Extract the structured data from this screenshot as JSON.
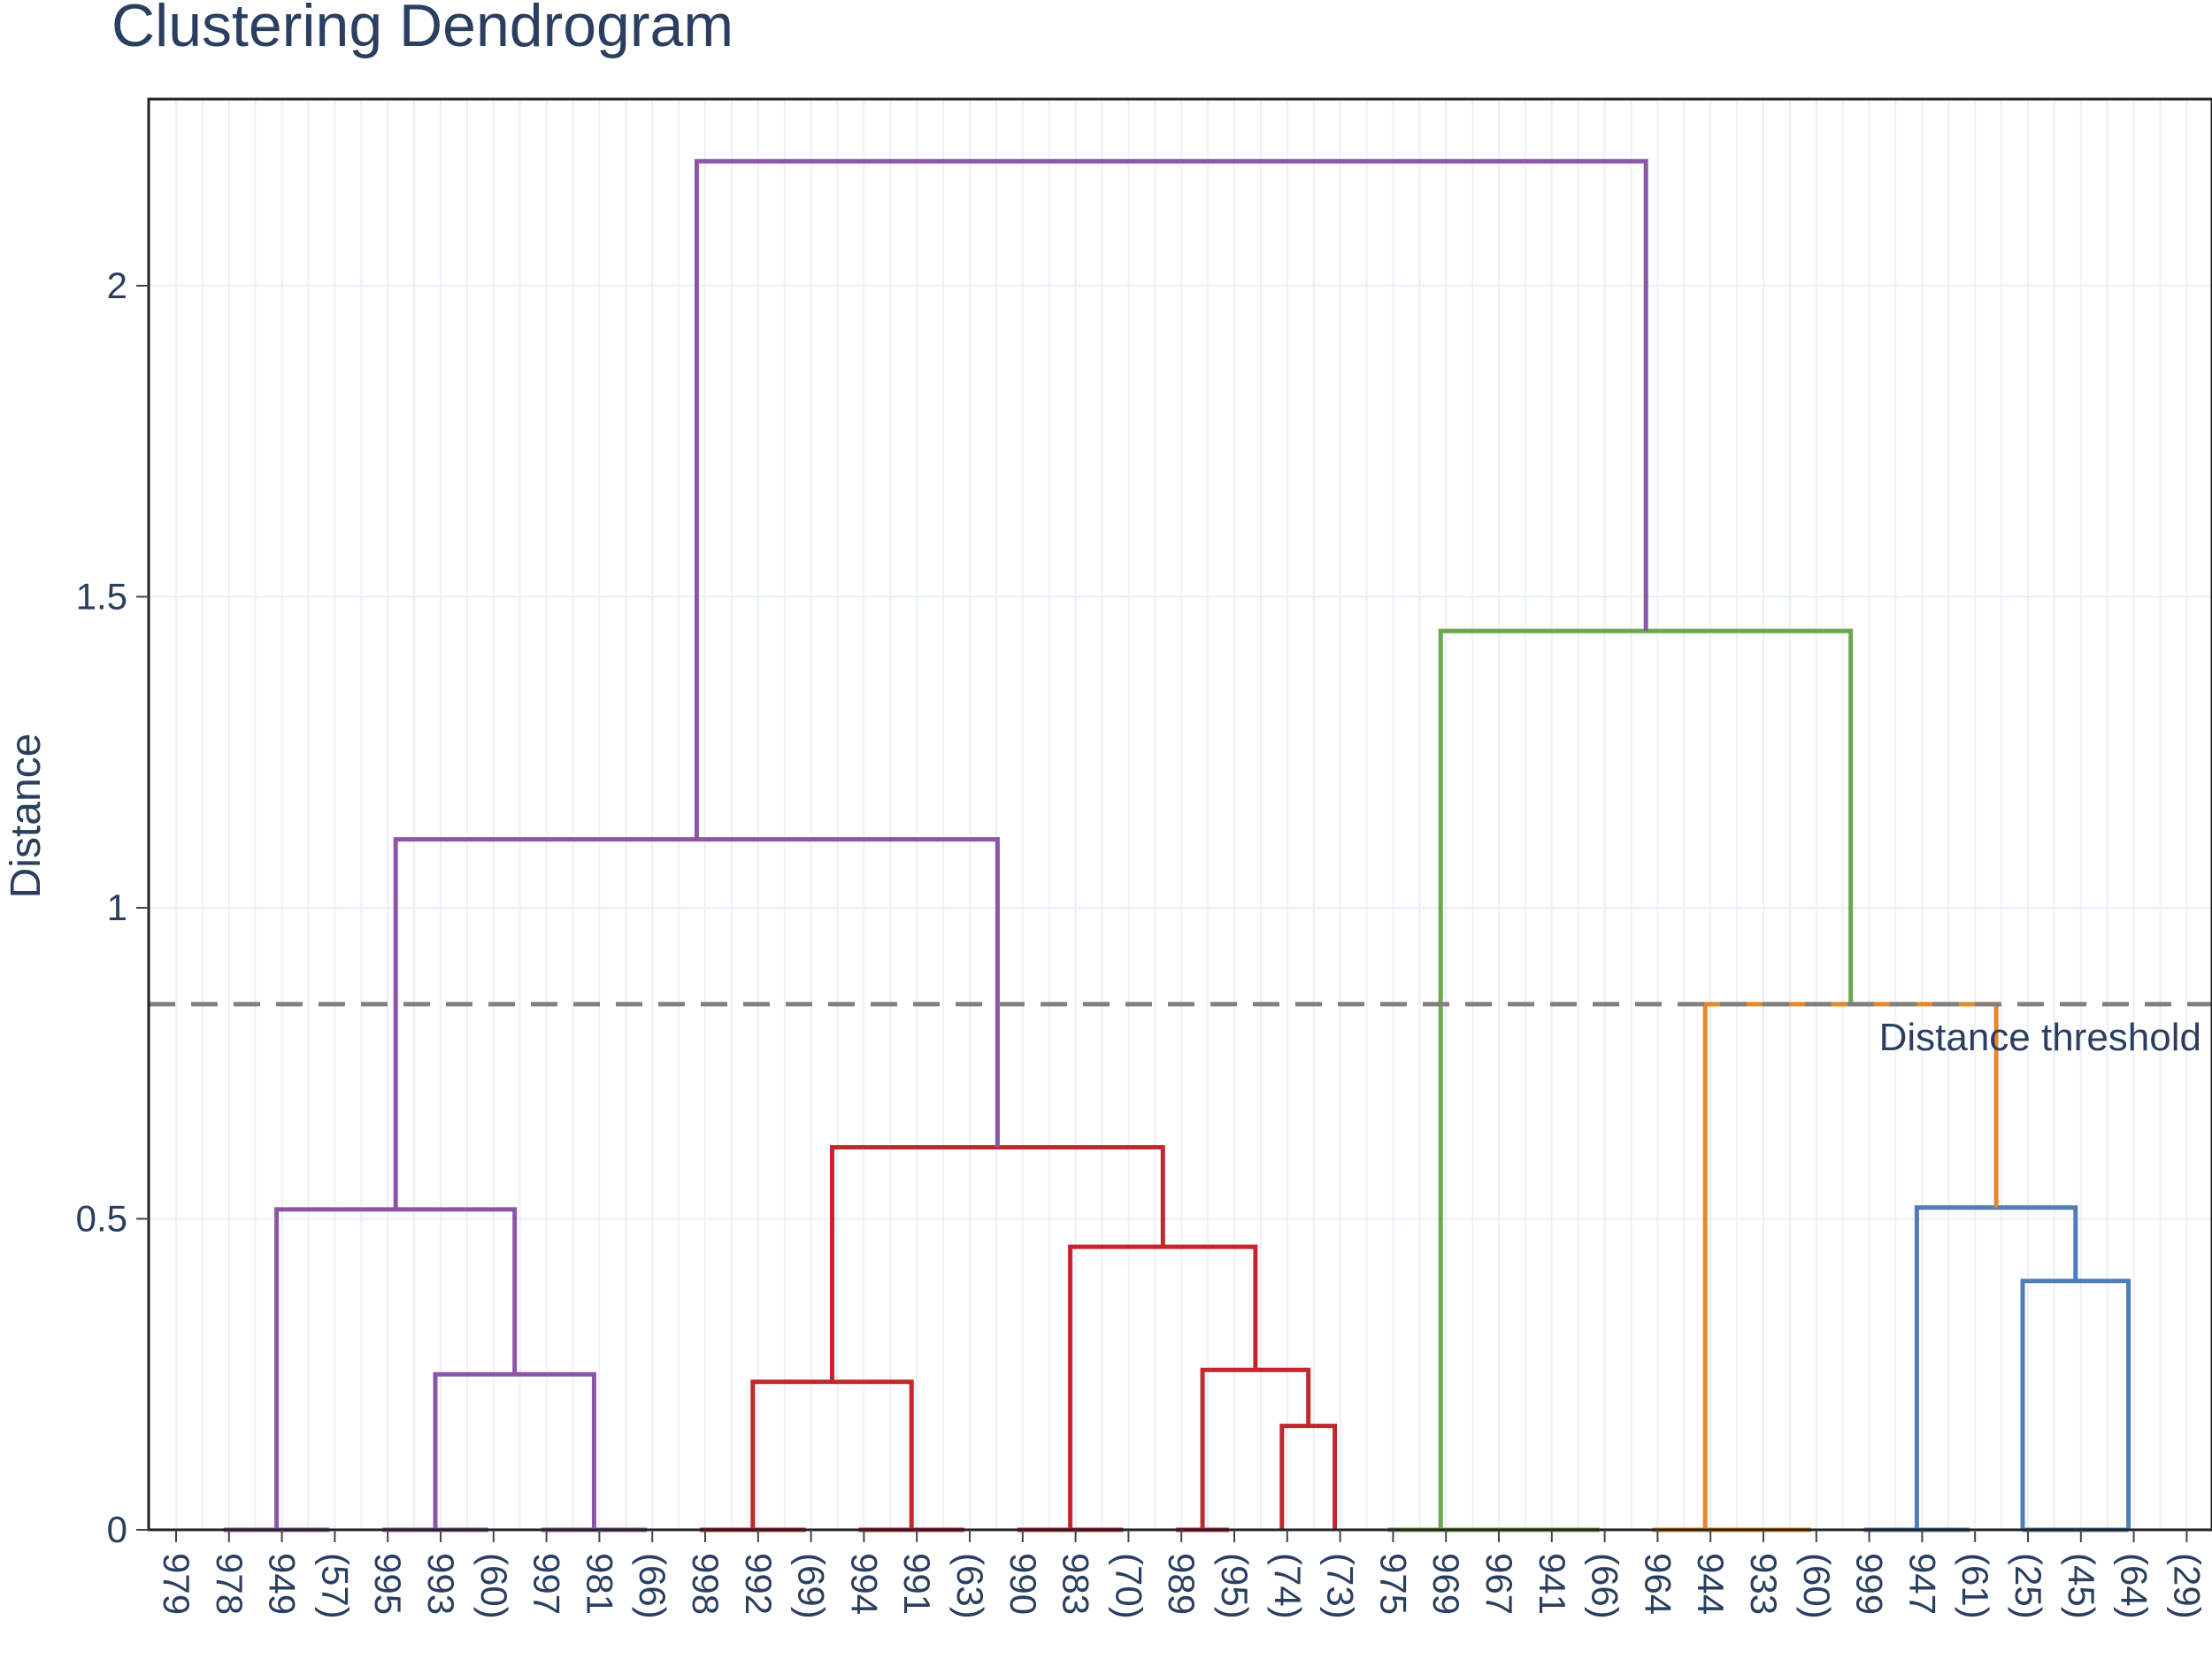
{
  "chart_data": {
    "type": "dendrogram",
    "title": "Clustering Dendrogram",
    "xlabel": "",
    "ylabel": "Distance",
    "ylim": [
      0,
      2.3
    ],
    "yticks": [
      0,
      0.5,
      1,
      1.5,
      2
    ],
    "ytick_labels": [
      "0",
      "0.5",
      "1",
      "1.5",
      "2"
    ],
    "grid": true,
    "colors": {
      "purple": "#8c56a6",
      "red": "#c0282d",
      "green": "#6aa84f",
      "orange": "#e8862a",
      "blue": "#4f7db8",
      "threshold": "#808080"
    },
    "leaves": [
      "979",
      "978",
      "949",
      "(57)",
      "995",
      "993",
      "(60)",
      "997",
      "981",
      "(66)",
      "998",
      "992",
      "(69)",
      "994",
      "991",
      "(63)",
      "990",
      "983",
      "(70)",
      "989",
      "(95)",
      "(74)",
      "(73)",
      "975",
      "969",
      "967",
      "941",
      "(66)",
      "964",
      "944",
      "933",
      "(60)",
      "999",
      "947",
      "(61)",
      "(25)",
      "(45)",
      "(64)",
      "(29)"
    ],
    "links": [
      {
        "x": [
          0.9,
          0.9,
          2.9,
          2.9
        ],
        "y": [
          0,
          0,
          0,
          0
        ],
        "color": "purple"
      },
      {
        "x": [
          3.9,
          3.9,
          5.9,
          5.9
        ],
        "y": [
          0,
          0,
          0,
          0
        ],
        "color": "purple"
      },
      {
        "x": [
          6.9,
          6.9,
          8.9,
          8.9
        ],
        "y": [
          0,
          0,
          0,
          0
        ],
        "color": "purple"
      },
      {
        "x": [
          4.9,
          4.9,
          7.9,
          7.9
        ],
        "y": [
          0,
          0.25,
          0.25,
          0
        ],
        "color": "purple"
      },
      {
        "x": [
          1.9,
          1.9,
          6.4,
          6.4
        ],
        "y": [
          0,
          0.515,
          0.515,
          0.25
        ],
        "color": "purple"
      },
      {
        "x": [
          9.9,
          9.9,
          11.9,
          11.9
        ],
        "y": [
          0,
          0,
          0,
          0
        ],
        "color": "red"
      },
      {
        "x": [
          12.9,
          12.9,
          14.9,
          14.9
        ],
        "y": [
          0,
          0,
          0,
          0
        ],
        "color": "red"
      },
      {
        "x": [
          10.9,
          10.9,
          13.9,
          13.9
        ],
        "y": [
          0,
          0.238,
          0.238,
          0
        ],
        "color": "red"
      },
      {
        "x": [
          15.9,
          15.9,
          17.9,
          17.9
        ],
        "y": [
          0,
          0,
          0,
          0
        ],
        "color": "red"
      },
      {
        "x": [
          18.9,
          18.9,
          19.9,
          19.9
        ],
        "y": [
          0,
          0,
          0,
          0
        ],
        "color": "red"
      },
      {
        "x": [
          20.9,
          20.9,
          21.9,
          21.9
        ],
        "y": [
          0,
          0.167,
          0.167,
          0
        ],
        "color": "red"
      },
      {
        "x": [
          19.4,
          19.4,
          21.4,
          21.4
        ],
        "y": [
          0,
          0.257,
          0.257,
          0.167
        ],
        "color": "red"
      },
      {
        "x": [
          16.9,
          16.9,
          20.4,
          20.4
        ],
        "y": [
          0,
          0.455,
          0.455,
          0.257
        ],
        "color": "red"
      },
      {
        "x": [
          12.4,
          12.4,
          18.65,
          18.65
        ],
        "y": [
          0.238,
          0.615,
          0.615,
          0.455
        ],
        "color": "red"
      },
      {
        "x": [
          4.15,
          4.15,
          15.525,
          15.525
        ],
        "y": [
          0.515,
          1.11,
          1.11,
          0.615
        ],
        "color": "purple"
      },
      {
        "x": [
          22.9,
          22.9,
          26.9,
          26.9
        ],
        "y": [
          0,
          0,
          0,
          0
        ],
        "color": "green"
      },
      {
        "x": [
          27.9,
          27.9,
          30.9,
          30.9
        ],
        "y": [
          0,
          0,
          0,
          0
        ],
        "color": "orange"
      },
      {
        "x": [
          31.9,
          31.9,
          33.9,
          33.9
        ],
        "y": [
          0,
          0,
          0,
          0
        ],
        "color": "blue"
      },
      {
        "x": [
          34.9,
          34.9,
          35.9,
          35.9
        ],
        "y": [
          0,
          0,
          0,
          0
        ],
        "color": "blue"
      },
      {
        "x": [
          35.9,
          35.9,
          36.9,
          36.9
        ],
        "y": [
          0,
          0,
          0,
          0
        ],
        "color": "blue"
      },
      {
        "x": [
          34.9,
          34.9,
          36.9,
          36.9
        ],
        "y": [
          0,
          0.4,
          0.4,
          0
        ],
        "color": "blue"
      },
      {
        "x": [
          32.9,
          32.9,
          35.9,
          35.9
        ],
        "y": [
          0,
          0.518,
          0.518,
          0.4
        ],
        "color": "blue"
      },
      {
        "x": [
          28.9,
          28.9,
          34.4,
          34.4
        ],
        "y": [
          0,
          0.845,
          0.845,
          0.518
        ],
        "color": "orange"
      },
      {
        "x": [
          23.9,
          23.9,
          31.65,
          31.65
        ],
        "y": [
          0,
          1.445,
          1.445,
          0.845
        ],
        "color": "green"
      },
      {
        "x": [
          9.84,
          9.84,
          27.78,
          27.78
        ],
        "y": [
          1.11,
          2.2,
          2.2,
          1.445
        ],
        "color": "purple"
      }
    ],
    "threshold": {
      "value": 0.845,
      "label": "Distance threshold"
    }
  }
}
